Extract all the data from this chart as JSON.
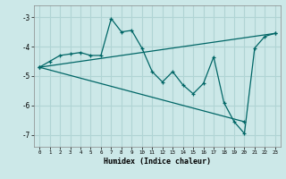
{
  "xlabel": "Humidex (Indice chaleur)",
  "bg_color": "#cce8e8",
  "grid_color": "#b0d4d4",
  "line_color": "#006666",
  "xlim": [
    -0.5,
    23.5
  ],
  "ylim": [
    -7.4,
    -2.6
  ],
  "yticks": [
    -7,
    -6,
    -5,
    -4,
    -3
  ],
  "xticks": [
    0,
    1,
    2,
    3,
    4,
    5,
    6,
    7,
    8,
    9,
    10,
    11,
    12,
    13,
    14,
    15,
    16,
    17,
    18,
    19,
    20,
    21,
    22,
    23
  ],
  "line1_x": [
    0,
    1,
    2,
    3,
    4,
    5,
    6,
    7,
    8,
    9,
    10,
    11,
    12,
    13,
    14,
    15,
    16,
    17,
    18,
    19,
    20,
    21,
    22,
    23
  ],
  "line1_y": [
    -4.7,
    -4.5,
    -4.3,
    -4.25,
    -4.2,
    -4.3,
    -4.3,
    -3.05,
    -3.5,
    -3.45,
    -4.05,
    -4.85,
    -5.2,
    -4.85,
    -5.3,
    -5.6,
    -5.25,
    -4.35,
    -5.9,
    -6.55,
    -6.95,
    -4.05,
    -3.65,
    -3.55
  ],
  "line2_x": [
    0,
    23
  ],
  "line2_y": [
    -4.7,
    -3.55
  ],
  "line3_x": [
    0,
    20
  ],
  "line3_y": [
    -4.7,
    -6.55
  ],
  "marker": "+"
}
